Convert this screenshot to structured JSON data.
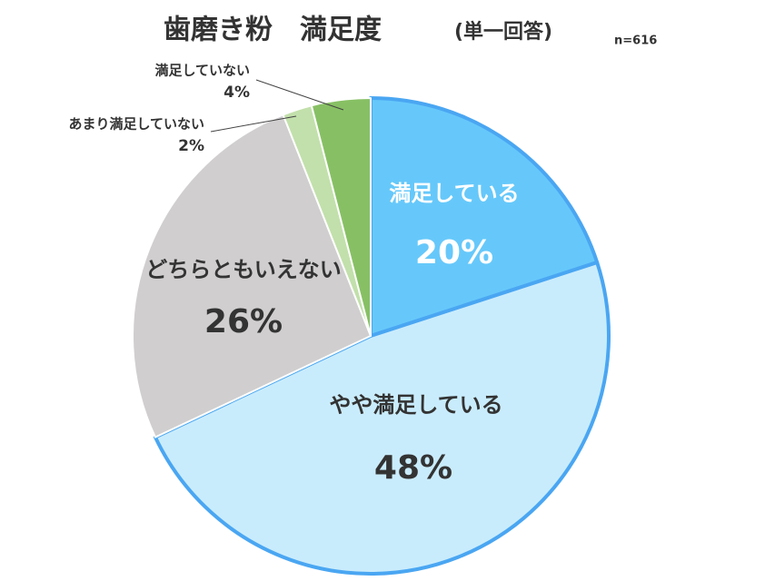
{
  "chart_data": {
    "type": "pie",
    "title": "歯磨き粉　満足度",
    "subtitle": "(単一回答)",
    "note": "n=616",
    "categories": [
      "満足している",
      "やや満足している",
      "どちらともいえない",
      "あまり満足していない",
      "満足していない"
    ],
    "values": [
      20,
      48,
      26,
      2,
      4
    ],
    "value_labels": [
      "20%",
      "48%",
      "26%",
      "2%",
      "4%"
    ],
    "colors": [
      "#66c8fa",
      "#c9ecfc",
      "#d0cece",
      "#c2e0ab",
      "#87c064"
    ]
  }
}
